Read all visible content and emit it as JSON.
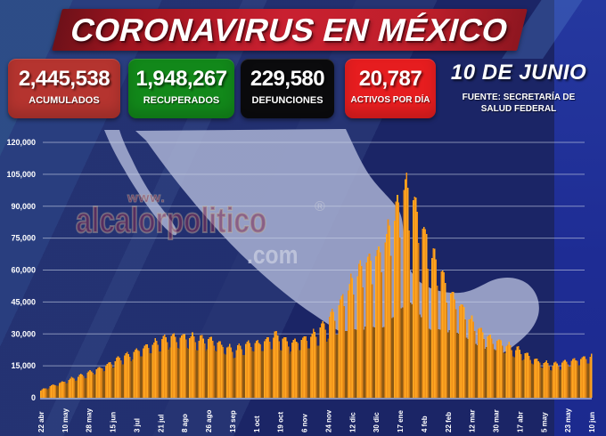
{
  "header": {
    "title": "CORONAVIRUS EN MÉXICO"
  },
  "stats": [
    {
      "value": "2,445,538",
      "label": "ACUMULADOS",
      "color": "#b5342f"
    },
    {
      "value": "1,948,267",
      "label": "RECUPERADOS",
      "color": "#12881a"
    },
    {
      "value": "229,580",
      "label": "DEFUNCIONES",
      "color": "#0b0b0d"
    },
    {
      "value": "20,787",
      "label": "ACTIVOS POR DÍA",
      "color": "#e61d1f"
    }
  ],
  "date_block": {
    "date": "10 DE JUNIO",
    "source_line1": "FUENTE: SECRETARÍA DE",
    "source_line2": "SALUD FEDERAL"
  },
  "watermark": {
    "www": "www.",
    "main": "alcalorpolitico",
    "reg": "®",
    "tld": ".com"
  },
  "colors": {
    "background": "#1b2566",
    "right_band": "#1f2e9a",
    "banner_red": "#c22030",
    "grid": "#ccd3e6",
    "map": "#a9b1d4"
  },
  "chart_data": {
    "type": "bar",
    "description": "Casos activos de COVID-19 por día en México, barras diarias",
    "ylim": [
      0,
      120000
    ],
    "grid": true,
    "y_ticks": [
      {
        "v": 0,
        "label": "0"
      },
      {
        "v": 15000,
        "label": "15,000"
      },
      {
        "v": 30000,
        "label": "30,000"
      },
      {
        "v": 45000,
        "label": "45,000"
      },
      {
        "v": 60000,
        "label": "60,000"
      },
      {
        "v": 75000,
        "label": "75,000"
      },
      {
        "v": 90000,
        "label": "90,000"
      },
      {
        "v": 105000,
        "label": "105,000"
      },
      {
        "v": 120000,
        "label": "120,000"
      }
    ],
    "x_tick_labels": [
      "22 abr",
      "10 may",
      "28 may",
      "15 jun",
      "3 jul",
      "21 jul",
      "8 ago",
      "26 ago",
      "13 sep",
      "1 oct",
      "19 oct",
      "6 nov",
      "24 nov",
      "12 dic",
      "30 dic",
      "17 ene",
      "4 feb",
      "22 feb",
      "12 mar",
      "30 mar",
      "17 abr",
      "5 may",
      "23 may",
      "10 jun"
    ],
    "x_tick_step_days": 18,
    "days_total": 415,
    "envelope_anchor_points": [
      [
        0,
        3500
      ],
      [
        6,
        5200
      ],
      [
        12,
        6500
      ],
      [
        18,
        7800
      ],
      [
        27,
        9800
      ],
      [
        36,
        11800
      ],
      [
        45,
        14000
      ],
      [
        54,
        16800
      ],
      [
        63,
        19500
      ],
      [
        72,
        22000
      ],
      [
        81,
        24500
      ],
      [
        90,
        26800
      ],
      [
        97,
        28800
      ],
      [
        104,
        28200
      ],
      [
        110,
        28800
      ],
      [
        117,
        27600
      ],
      [
        126,
        27200
      ],
      [
        133,
        25800
      ],
      [
        140,
        23800
      ],
      [
        145,
        22300
      ],
      [
        151,
        24200
      ],
      [
        158,
        25600
      ],
      [
        164,
        25800
      ],
      [
        171,
        27400
      ],
      [
        176,
        29200
      ],
      [
        181,
        27600
      ],
      [
        187,
        25400
      ],
      [
        193,
        26600
      ],
      [
        199,
        27800
      ],
      [
        206,
        30200
      ],
      [
        212,
        33500
      ],
      [
        218,
        38500
      ],
      [
        224,
        43500
      ],
      [
        230,
        50000
      ],
      [
        236,
        57000
      ],
      [
        242,
        61500
      ],
      [
        248,
        64000
      ],
      [
        254,
        67500
      ],
      [
        260,
        75000
      ],
      [
        266,
        85000
      ],
      [
        271,
        93000
      ],
      [
        275,
        99000
      ],
      [
        279,
        94000
      ],
      [
        284,
        86000
      ],
      [
        289,
        76000
      ],
      [
        294,
        67000
      ],
      [
        300,
        60000
      ],
      [
        306,
        50000
      ],
      [
        312,
        45500
      ],
      [
        318,
        41000
      ],
      [
        324,
        35500
      ],
      [
        330,
        31000
      ],
      [
        336,
        28500
      ],
      [
        342,
        27000
      ],
      [
        348,
        25200
      ],
      [
        354,
        23600
      ],
      [
        360,
        22200
      ],
      [
        366,
        19800
      ],
      [
        372,
        17800
      ],
      [
        378,
        16400
      ],
      [
        384,
        15300
      ],
      [
        390,
        15900
      ],
      [
        396,
        16900
      ],
      [
        402,
        17700
      ],
      [
        408,
        18600
      ],
      [
        414,
        19800
      ]
    ],
    "weekday_pattern": {
      "base": [
        1.0,
        1.045,
        1.07,
        1.02,
        0.95,
        0.84,
        0.84
      ],
      "friday_index": 4,
      "weekend_indices": [
        5,
        6
      ],
      "friday_dip_extra": 0.12,
      "weekend_dip_extra": 0.38,
      "dip_ref": 25000,
      "dip_range": 45000
    },
    "bar_colors": {
      "bright": "#ffa822",
      "mid": "#ef911a",
      "friday": "#d07c16",
      "weekend": "#8a5814"
    },
    "peak_value": 105900,
    "last_bar_value": 20787
  }
}
